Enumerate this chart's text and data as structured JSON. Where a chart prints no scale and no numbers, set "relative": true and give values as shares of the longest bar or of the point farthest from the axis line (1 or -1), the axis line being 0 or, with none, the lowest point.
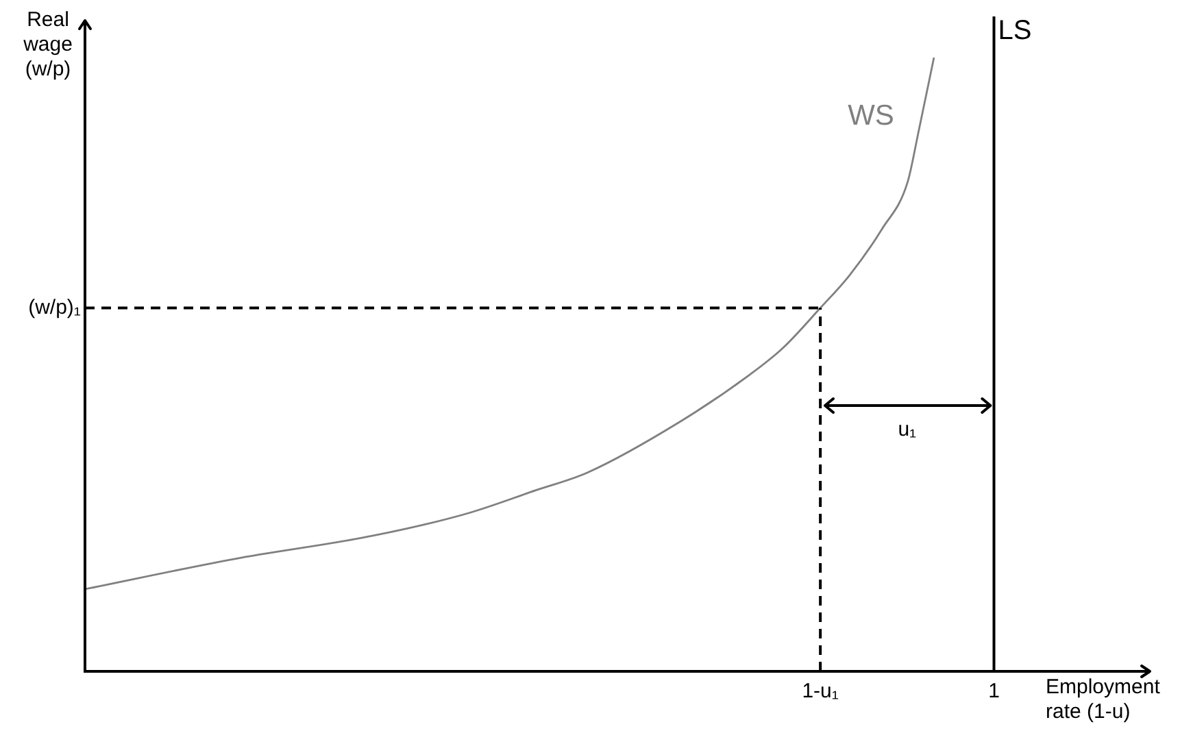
{
  "chart_data": {
    "type": "line",
    "xlabel": "Employment rate (1-u)",
    "ylabel": "Real wage (w/p)",
    "relative": true,
    "xlim": [
      0,
      1.17
    ],
    "xticks": [
      {
        "value": 0.809,
        "label": "1-u₁"
      },
      1
    ],
    "series": [
      {
        "name": "WS",
        "color": "#808080",
        "x": [
          0,
          0.164,
          0.317,
          0.42,
          0.496,
          0.553,
          0.656,
          0.732,
          0.768,
          0.809,
          0.841,
          0.877,
          0.905,
          0.917,
          0.934
        ],
        "values": [
          0.134,
          0.183,
          0.221,
          0.257,
          0.295,
          0.324,
          0.408,
          0.484,
          0.527,
          0.592,
          0.645,
          0.721,
          0.797,
          0.879,
          1.0
        ]
      }
    ],
    "ref_lines": [
      {
        "axis": "y",
        "value": 0.592,
        "label": "(w/p)₁",
        "line_style": "dashed",
        "color": "#000000"
      },
      {
        "axis": "x",
        "value": 0.809,
        "line_style": "dashed",
        "color": "#000000"
      },
      {
        "axis": "x",
        "value": 1,
        "label": "LS",
        "line_style": "solid",
        "color": "#000000"
      }
    ],
    "annotations": [
      "u₁"
    ]
  }
}
